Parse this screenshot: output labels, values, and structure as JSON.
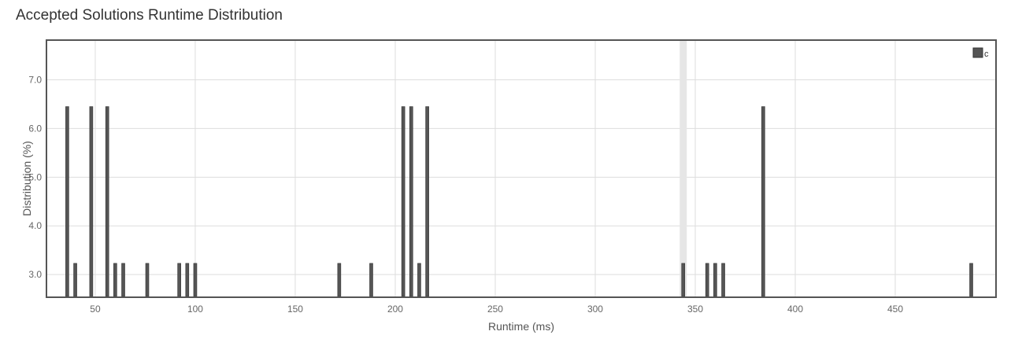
{
  "title": "Accepted Solutions Runtime Distribution",
  "chart_data": {
    "type": "bar",
    "xlabel": "Runtime (ms)",
    "ylabel": "Distribution (%)",
    "xlim": [
      26,
      500
    ],
    "ylim": [
      2.55,
      7.8
    ],
    "x_ticks": [
      50,
      100,
      150,
      200,
      250,
      300,
      350,
      400,
      450
    ],
    "y_ticks": [
      3.0,
      4.0,
      5.0,
      6.0,
      7.0
    ],
    "x_tick_labels": [
      "50",
      "100",
      "150",
      "200",
      "250",
      "300",
      "350",
      "400",
      "450"
    ],
    "y_tick_labels": [
      "3.0",
      "4.0",
      "5.0",
      "6.0",
      "7.0"
    ],
    "grid": true,
    "highlight_x": 344,
    "legend": {
      "position": "top-right"
    },
    "series": [
      {
        "name": "c",
        "color": "#555555",
        "points": [
          {
            "x": 36,
            "y": 6.45
          },
          {
            "x": 40,
            "y": 3.23
          },
          {
            "x": 48,
            "y": 6.45
          },
          {
            "x": 56,
            "y": 6.45
          },
          {
            "x": 60,
            "y": 3.23
          },
          {
            "x": 64,
            "y": 3.23
          },
          {
            "x": 76,
            "y": 3.23
          },
          {
            "x": 92,
            "y": 3.23
          },
          {
            "x": 96,
            "y": 3.23
          },
          {
            "x": 100,
            "y": 3.23
          },
          {
            "x": 172,
            "y": 3.23
          },
          {
            "x": 188,
            "y": 3.23
          },
          {
            "x": 204,
            "y": 6.45
          },
          {
            "x": 208,
            "y": 6.45
          },
          {
            "x": 212,
            "y": 3.23
          },
          {
            "x": 216,
            "y": 6.45
          },
          {
            "x": 344,
            "y": 3.23
          },
          {
            "x": 356,
            "y": 3.23
          },
          {
            "x": 360,
            "y": 3.23
          },
          {
            "x": 364,
            "y": 3.23
          },
          {
            "x": 384,
            "y": 6.45
          },
          {
            "x": 488,
            "y": 3.23
          }
        ]
      }
    ]
  }
}
